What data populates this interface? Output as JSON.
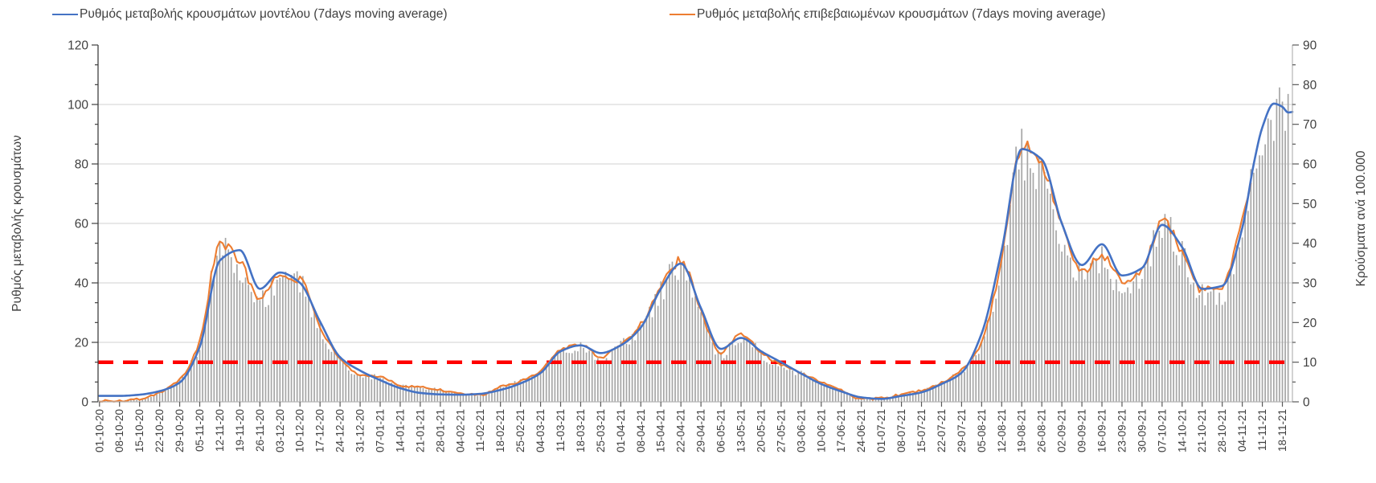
{
  "page": {
    "background": "#FFFFFF"
  },
  "chart_data": {
    "type": "line+bar",
    "title": "",
    "x_tick_labels": [
      "01-10-20",
      "08-10-20",
      "15-10-20",
      "22-10-20",
      "29-10-20",
      "05-11-20",
      "12-11-20",
      "19-11-20",
      "26-11-20",
      "03-12-20",
      "10-12-20",
      "17-12-20",
      "24-12-20",
      "31-12-20",
      "07-01-21",
      "14-01-21",
      "21-01-21",
      "28-01-21",
      "04-02-21",
      "11-02-21",
      "18-02-21",
      "25-02-21",
      "04-03-21",
      "11-03-21",
      "18-03-21",
      "25-03-21",
      "01-04-21",
      "08-04-21",
      "15-04-21",
      "22-04-21",
      "29-04-21",
      "06-05-21",
      "13-05-21",
      "20-05-21",
      "27-05-21",
      "03-06-21",
      "10-06-21",
      "17-06-21",
      "24-06-21",
      "01-07-21",
      "08-07-21",
      "15-07-21",
      "22-07-21",
      "29-07-21",
      "05-08-21",
      "12-08-21",
      "19-08-21",
      "26-08-21",
      "02-09-21",
      "09-09-21",
      "16-09-21",
      "23-09-21",
      "30-09-21",
      "07-10-21",
      "14-10-21",
      "21-10-21",
      "28-10-21",
      "04-11-21",
      "11-11-21",
      "18-11-21"
    ],
    "label_interval_days": 7,
    "days_total": 417,
    "left_axis": {
      "title": "Ρυθμός μεταβολής κρουσμάτων",
      "min": 0,
      "max": 120,
      "tick_labels": [
        0,
        20,
        40,
        60,
        80,
        100,
        120
      ],
      "gridline_values": [
        20,
        40,
        60,
        80,
        100
      ]
    },
    "right_axis": {
      "title": "Κρούσματα ανά 100.000",
      "min": 0,
      "max": 90,
      "tick_labels": [
        0,
        10,
        20,
        30,
        40,
        50,
        60,
        70,
        80,
        90
      ]
    },
    "threshold": {
      "left_value": 13.3,
      "right_value": 10,
      "color": "#FF0000",
      "style": "dashed"
    },
    "series": [
      {
        "name": "Ρυθμός μεταβολής κρουσμάτων μοντέλου (7days moving average)",
        "color": "#4472C4",
        "values_weekly": [
          2,
          2,
          2.4,
          3.6,
          6.5,
          18.5,
          47.5,
          51,
          38,
          43.5,
          40,
          27,
          15,
          10.5,
          7.3,
          4.6,
          3,
          2.5,
          2.4,
          2.7,
          4,
          6.2,
          9.7,
          17,
          19,
          16.4,
          19,
          25,
          38,
          46.5,
          31.5,
          17.8,
          21.5,
          17,
          13.3,
          9.5,
          6,
          3.5,
          1.5,
          1,
          2,
          3.2,
          6,
          9.8,
          23,
          51,
          85,
          81.5,
          60,
          46,
          53,
          42.5,
          45,
          59.5,
          52,
          38,
          39,
          58.5,
          92.3,
          99.2
        ],
        "extra_points": [
          [
            403,
            80
          ],
          [
            410,
            100.3
          ],
          [
            415,
            97.3
          ],
          [
            416.5,
            97.5
          ]
        ]
      },
      {
        "name": "Ρυθμός μεταβολής επιβεβαιωμένων κρουσμάτων (7days moving average)",
        "color": "#ED7D31",
        "values_weekly": [
          0.3,
          0.4,
          0.9,
          3.1,
          7.6,
          20.3,
          53,
          47.3,
          35,
          42.5,
          41,
          25.5,
          14.5,
          9,
          8.5,
          5.5,
          5,
          4,
          3,
          2.2,
          5,
          7,
          10.5,
          17.5,
          19.5,
          15,
          19.5,
          26,
          39,
          47.5,
          30,
          16.5,
          23,
          16.5,
          12.5,
          9.8,
          6.5,
          4,
          1,
          1.2,
          2.5,
          3.8,
          6.5,
          10.8,
          20,
          48,
          86.5,
          80,
          58.5,
          44,
          49,
          41,
          44.5,
          61,
          50.5,
          37.5,
          38.5,
          62
        ],
        "extra_points": [
          [
            402,
            74
          ]
        ]
      }
    ],
    "bars": {
      "color": "#A6A6A6",
      "envelope_extra_points": [
        [
          402,
          76
        ],
        [
          404.5,
          84
        ],
        [
          406,
          90
        ],
        [
          409,
          100
        ],
        [
          411,
          104
        ],
        [
          413,
          99
        ],
        [
          415,
          102
        ]
      ],
      "last_day": 415
    },
    "layout": {
      "grid": "horizontal",
      "legend_position": "top",
      "colors": {
        "grid": "#D9D9D9",
        "axis_dark": "#404040",
        "axis_light": "#B3B3B3",
        "tick": "#595959",
        "text": "#3F3F3F"
      }
    }
  }
}
